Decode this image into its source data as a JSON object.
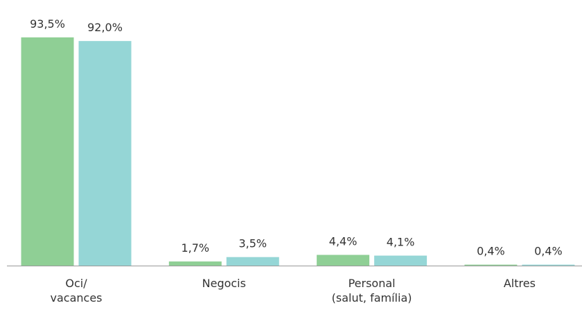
{
  "chart_data": {
    "type": "bar",
    "categories": [
      [
        "Oci/",
        "vacances"
      ],
      [
        "Negocis"
      ],
      [
        "Personal",
        "(salut, família)"
      ],
      [
        "Altres"
      ]
    ],
    "series": [
      {
        "color": "#8fcf95",
        "values": [
          93.5,
          1.7,
          4.4,
          0.4
        ],
        "value_labels": [
          "93,5%",
          "1,7%",
          "4,4%",
          "0,4%"
        ]
      },
      {
        "color": "#95d6d6",
        "values": [
          92.0,
          3.5,
          4.1,
          0.4
        ],
        "value_labels": [
          "92,0%",
          "3,5%",
          "4,1%",
          "0,4%"
        ]
      }
    ]
  }
}
